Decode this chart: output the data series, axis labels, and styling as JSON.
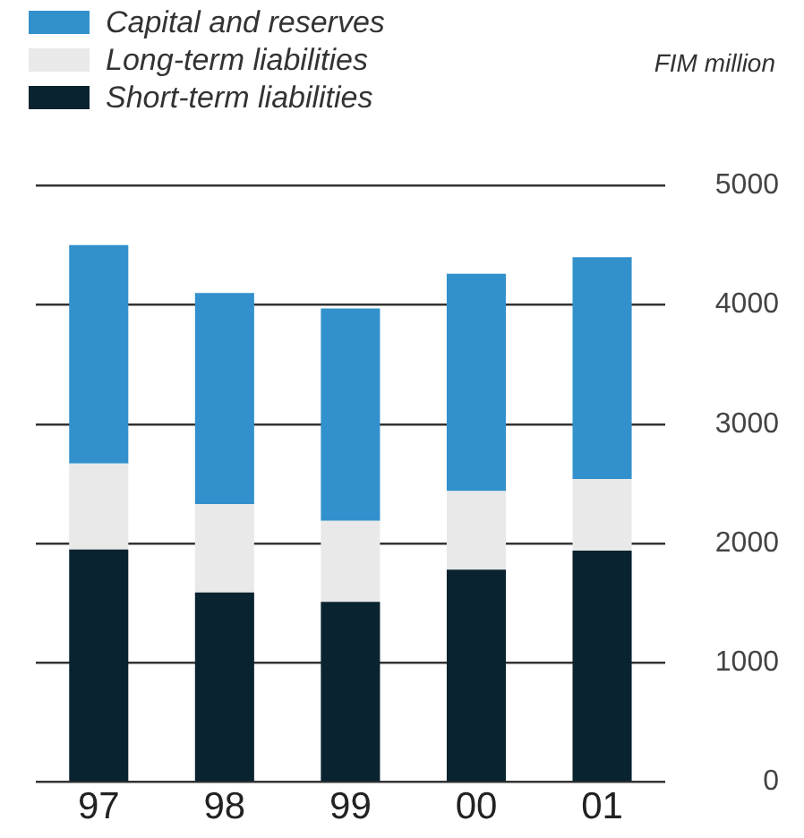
{
  "chart_data": {
    "type": "bar",
    "stacked": true,
    "ylabel": "FIM million",
    "categories": [
      "97",
      "98",
      "99",
      "00",
      "01"
    ],
    "series": [
      {
        "name": "Short-term liabilities",
        "color": "#0a2330",
        "values": [
          1950,
          1590,
          1510,
          1780,
          1940
        ]
      },
      {
        "name": "Long-term liabilities",
        "color": "#e8e9e8",
        "values": [
          720,
          740,
          680,
          660,
          600
        ]
      },
      {
        "name": "Capital and reserves",
        "color": "#3291cc",
        "values": [
          1830,
          1770,
          1780,
          1820,
          1860
        ]
      }
    ],
    "ylim": [
      0,
      5000
    ],
    "yticks": [
      0,
      1000,
      2000,
      3000,
      4000,
      5000
    ],
    "grid": "y",
    "legend": "top left"
  }
}
